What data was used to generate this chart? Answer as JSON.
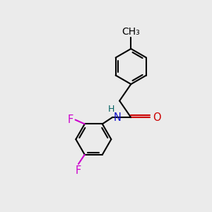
{
  "bg_color": "#ebebeb",
  "bond_color": "#000000",
  "atom_colors": {
    "N": "#1414cc",
    "O": "#cc0000",
    "F": "#cc00cc",
    "H": "#006060",
    "C": "#000000"
  },
  "line_width": 1.5,
  "font_size": 10.5,
  "ring_r": 0.85
}
